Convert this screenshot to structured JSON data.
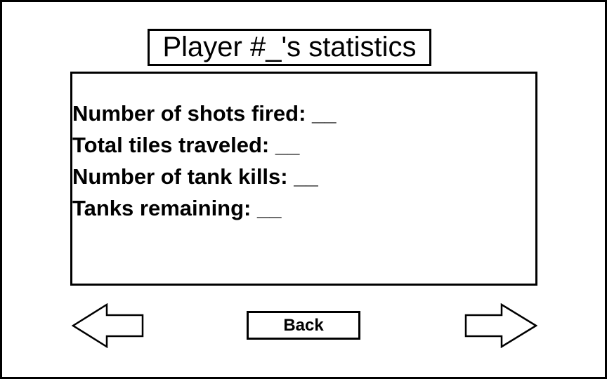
{
  "screen": {
    "title": "Player #_'s statistics"
  },
  "stats": [
    {
      "label": "Number of shots fired: __"
    },
    {
      "label": "Total tiles traveled: __"
    },
    {
      "label": "Number of tank kills: __"
    },
    {
      "label": "Tanks remaining: __"
    }
  ],
  "nav": {
    "back_label": "Back",
    "prev_icon": "left-arrow-icon",
    "next_icon": "right-arrow-icon"
  }
}
